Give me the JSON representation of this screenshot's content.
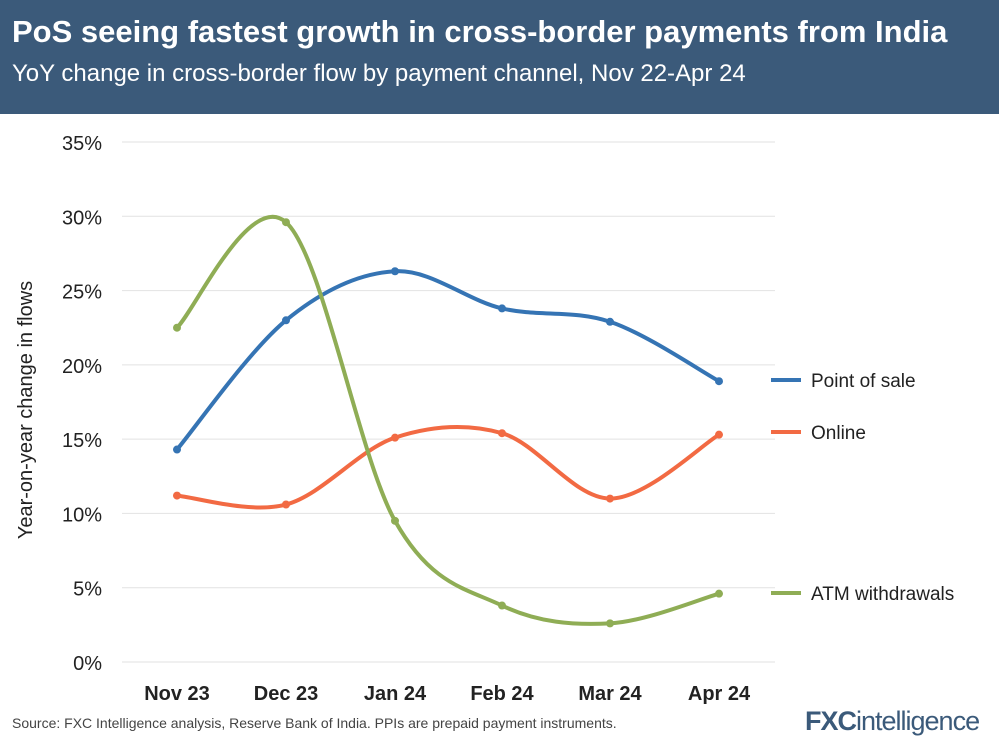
{
  "header": {
    "title": "PoS seeing fastest growth in cross-border payments from India",
    "subtitle": "YoY change in cross-border flow by payment channel, Nov 22-Apr 24"
  },
  "footer": {
    "source": "Source: FXC Intelligence analysis, Reserve Bank of India. PPIs are prepaid payment instruments.",
    "logo": "FXCintelligence"
  },
  "chart_data": {
    "type": "line",
    "title": "PoS seeing fastest growth in cross-border payments from India",
    "subtitle": "YoY change in cross-border flow by payment channel, Nov 22-Apr 24",
    "xlabel": "",
    "ylabel": "Year-on-year change in flows",
    "categories": [
      "Nov 23",
      "Dec 23",
      "Jan 24",
      "Feb 24",
      "Mar 24",
      "Apr 24"
    ],
    "ylim": [
      0,
      35
    ],
    "yticks": [
      0,
      5,
      10,
      15,
      20,
      25,
      30,
      35
    ],
    "ytick_labels": [
      "0%",
      "5%",
      "10%",
      "15%",
      "20%",
      "25%",
      "30%",
      "35%"
    ],
    "grid": true,
    "legend": "right",
    "series": [
      {
        "name": "Point of sale",
        "color": "#3574b4",
        "values": [
          14.3,
          23.0,
          26.3,
          23.8,
          22.9,
          18.9
        ]
      },
      {
        "name": "Online",
        "color": "#f26a43",
        "values": [
          11.2,
          10.6,
          15.1,
          15.4,
          11.0,
          15.3
        ]
      },
      {
        "name": "ATM withdrawals",
        "color": "#8fad55",
        "values": [
          22.5,
          29.6,
          9.5,
          3.8,
          2.6,
          4.6
        ]
      }
    ]
  }
}
